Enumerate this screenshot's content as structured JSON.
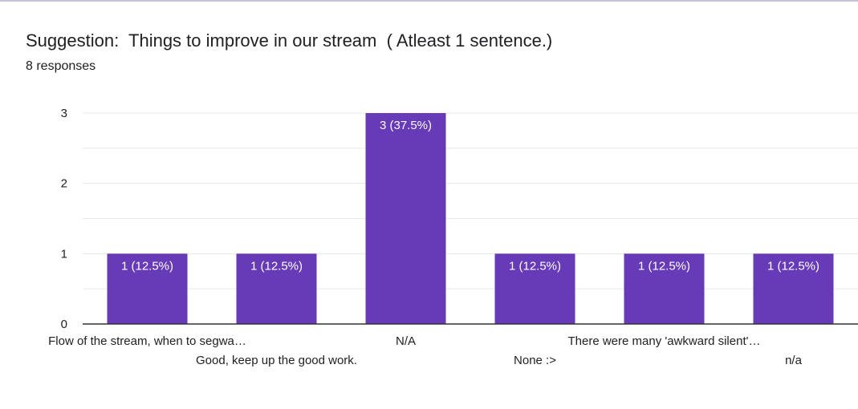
{
  "header": {
    "title": "Suggestion:  Things to improve in our stream  ( Atleast 1 sentence.)",
    "subtitle": "8 responses"
  },
  "colors": {
    "bar": "#673ab7",
    "grid": "#e8e8e8",
    "axis": "#333333",
    "text": "#202124",
    "bar_label": "#ffffff"
  },
  "chart_data": {
    "type": "bar",
    "categories": [
      "Flow of the stream, when to segwa…",
      "Good, keep up the good work.",
      "N/A",
      "None :>",
      "There were many 'awkward silent'…",
      "n/a"
    ],
    "values": [
      1,
      1,
      3,
      1,
      1,
      1
    ],
    "data_labels": [
      "1 (12.5%)",
      "1 (12.5%)",
      "3 (37.5%)",
      "1 (12.5%)",
      "1 (12.5%)",
      "1 (12.5%)"
    ],
    "ylim": [
      0,
      3
    ],
    "yticks": [
      0,
      1,
      2,
      3
    ],
    "grid": true,
    "minor_grid": true
  }
}
